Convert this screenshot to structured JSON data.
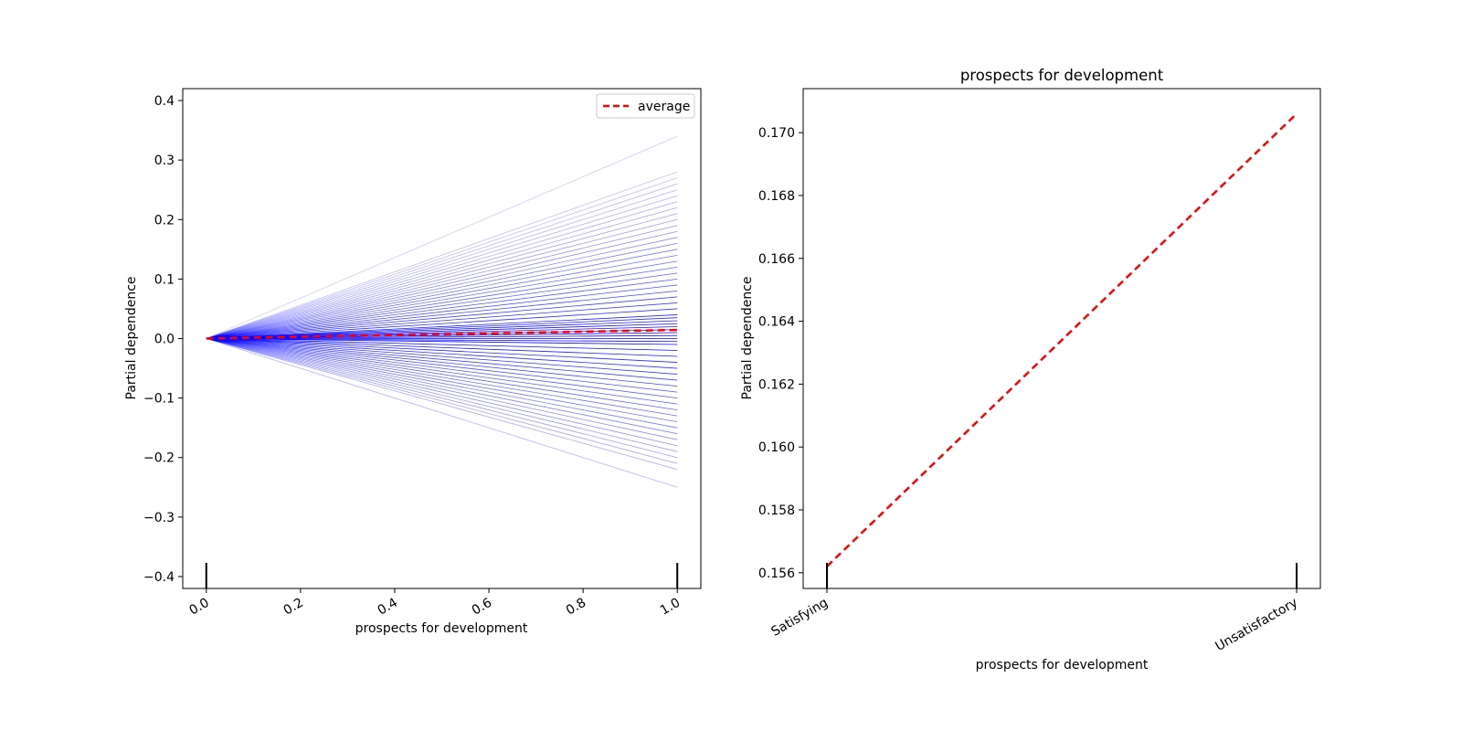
{
  "chart_data": [
    {
      "type": "line",
      "title": "",
      "xlabel": "prospects for development",
      "ylabel": "Partial dependence",
      "xlim": [
        -0.05,
        1.05
      ],
      "ylim": [
        -0.42,
        0.42
      ],
      "xticks": [
        0.0,
        0.2,
        0.4,
        0.6,
        0.8,
        1.0
      ],
      "xtick_labels": [
        "0.0",
        "0.2",
        "0.4",
        "0.6",
        "0.8",
        "1.0"
      ],
      "yticks": [
        -0.4,
        -0.3,
        -0.2,
        -0.1,
        0.0,
        0.1,
        0.2,
        0.3,
        0.4
      ],
      "ytick_labels": [
        "−0.4",
        "−0.3",
        "−0.2",
        "−0.1",
        "0.0",
        "0.1",
        "0.2",
        "0.3",
        "0.4"
      ],
      "x": [
        0.0,
        1.0
      ],
      "ice_end_values": [
        0.34,
        0.28,
        0.27,
        0.26,
        0.25,
        0.24,
        0.23,
        0.22,
        0.21,
        0.2,
        0.19,
        0.18,
        0.17,
        0.16,
        0.15,
        0.14,
        0.13,
        0.12,
        0.11,
        0.1,
        0.09,
        0.08,
        0.07,
        0.06,
        0.05,
        0.04,
        0.035,
        0.03,
        0.025,
        0.02,
        0.015,
        0.01,
        0.005,
        0.0,
        -0.005,
        -0.01,
        -0.02,
        -0.03,
        -0.04,
        -0.05,
        -0.06,
        -0.07,
        -0.08,
        -0.09,
        -0.1,
        -0.11,
        -0.12,
        -0.13,
        -0.14,
        -0.15,
        -0.16,
        -0.17,
        -0.18,
        -0.19,
        -0.2,
        -0.21,
        -0.22,
        -0.25
      ],
      "series": [
        {
          "name": "average",
          "x": [
            0.0,
            1.0
          ],
          "values": [
            0.0,
            0.0145
          ]
        }
      ],
      "legend": "top-right",
      "rug": [
        0.0,
        1.0
      ],
      "grid": false,
      "colors": {
        "ice": "#0000ff",
        "average": "#ff0000"
      }
    },
    {
      "type": "line",
      "title": "prospects for development",
      "xlabel": "prospects for development",
      "ylabel": "Partial dependence",
      "categories": [
        "Satisfying",
        "Unsatisfactory"
      ],
      "ylim": [
        0.1555,
        0.1714
      ],
      "yticks": [
        0.156,
        0.158,
        0.16,
        0.162,
        0.164,
        0.166,
        0.168,
        0.17
      ],
      "ytick_labels": [
        "0.156",
        "0.158",
        "0.160",
        "0.162",
        "0.164",
        "0.166",
        "0.168",
        "0.170"
      ],
      "values": [
        0.1562,
        0.1706
      ],
      "rug": [
        "Satisfying",
        "Unsatisfactory"
      ],
      "grid": false,
      "colors": {
        "line": "#ff0000"
      }
    }
  ]
}
